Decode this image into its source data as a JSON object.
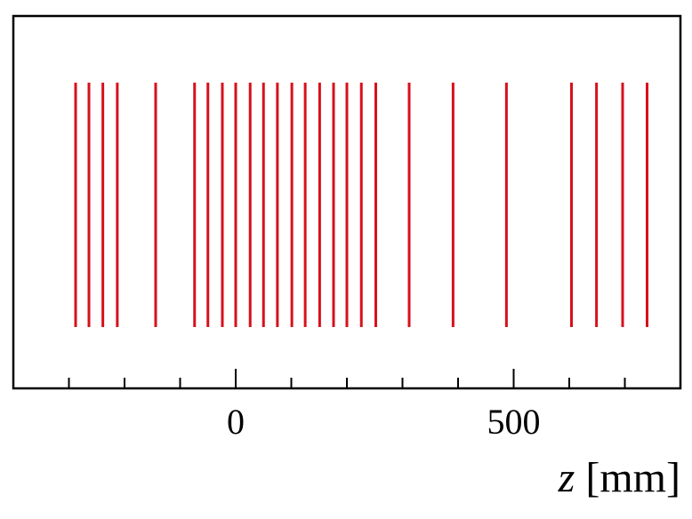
{
  "chart_data": {
    "type": "event",
    "x": [
      -288,
      -264,
      -239,
      -213,
      -144,
      -74,
      -50,
      -24,
      0,
      26,
      50,
      75,
      101,
      125,
      151,
      176,
      200,
      226,
      252,
      312,
      391,
      487,
      604,
      649,
      696,
      740
    ],
    "color": "#d7101c",
    "xlim": [
      -400,
      800
    ],
    "xticks": [
      0,
      500
    ],
    "xminorticks": [
      -300,
      -200,
      -100,
      100,
      200,
      300,
      400,
      600,
      700
    ],
    "xlabel": {
      "symbol": "z",
      "unit": "[mm]"
    }
  }
}
